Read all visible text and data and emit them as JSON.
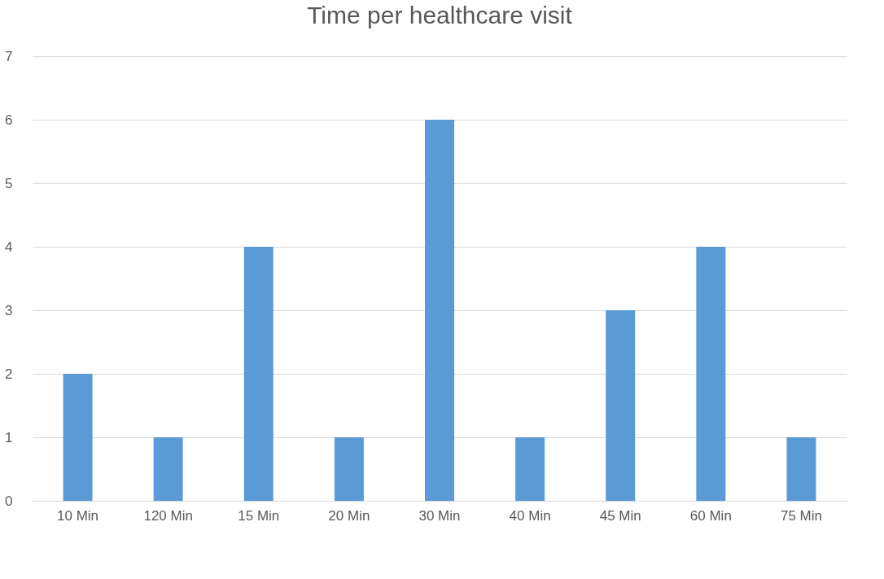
{
  "chart_data": {
    "type": "bar",
    "title": "Time per healthcare visit",
    "categories": [
      "10 Min",
      "120 Min",
      "15 Min",
      "20 Min",
      "30 Min",
      "40 Min",
      "45 Min",
      "60 Min",
      "75 Min"
    ],
    "values": [
      2,
      1,
      4,
      1,
      6,
      1,
      3,
      4,
      1
    ],
    "color": "#5b9bd5",
    "ylim": [
      0,
      7
    ],
    "yticks": [
      0,
      1,
      2,
      3,
      4,
      5,
      6,
      7
    ],
    "grid": "y"
  }
}
